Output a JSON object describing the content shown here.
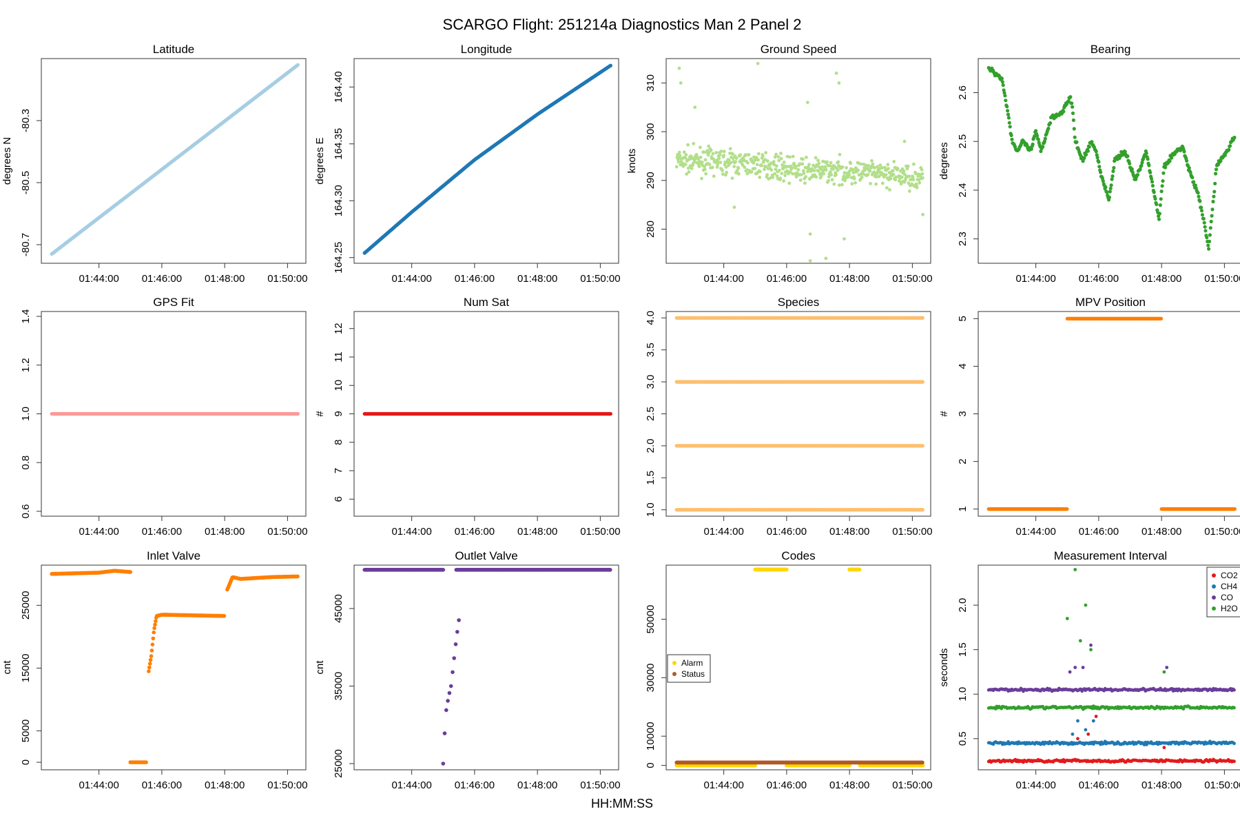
{
  "figure": {
    "title": "SCARGO Flight: 251214a  Diagnostics Man 2 Panel 2",
    "xlabel": "HH:MM:SS",
    "x_tick_labels": [
      "01:44:00",
      "01:46:00",
      "01:48:00",
      "01:50:00"
    ]
  },
  "chart_data": [
    {
      "id": "latitude",
      "type": "scatter",
      "title": "Latitude",
      "ylabel": "degrees N",
      "xlim": [
        "01:42:10",
        "01:50:35"
      ],
      "ylim": [
        -80.76,
        -80.1
      ],
      "yticks": [
        -80.7,
        -80.5,
        -80.3
      ],
      "ytick_labels": [
        "-80.7",
        "-80.5",
        "-80.3"
      ],
      "color": "#a6cee3",
      "series": [
        {
          "x": [
            "01:42:30",
            "01:50:20"
          ],
          "y": [
            -80.73,
            -80.12
          ]
        }
      ]
    },
    {
      "id": "longitude",
      "type": "scatter",
      "title": "Longitude",
      "ylabel": "degrees E",
      "xlim": [
        "01:42:10",
        "01:50:35"
      ],
      "ylim": [
        164.245,
        164.425
      ],
      "yticks": [
        164.25,
        164.3,
        164.35,
        164.4
      ],
      "ytick_labels": [
        "164.25",
        "164.30",
        "164.35",
        "164.40"
      ],
      "color": "#1f78b4",
      "series": [
        {
          "x": [
            "01:42:30",
            "01:44:00",
            "01:46:00",
            "01:48:00",
            "01:50:20"
          ],
          "y": [
            164.254,
            164.29,
            164.336,
            164.376,
            164.419
          ]
        }
      ]
    },
    {
      "id": "ground_speed",
      "type": "scatter",
      "title": "Ground Speed",
      "ylabel": "knots",
      "xlim": [
        "01:42:10",
        "01:50:35"
      ],
      "ylim": [
        273,
        315
      ],
      "yticks": [
        280,
        290,
        300,
        310
      ],
      "ytick_labels": [
        "280",
        "290",
        "300",
        "310"
      ],
      "color": "#b2df8a",
      "series": [
        {
          "x": [
            "01:42:30",
            "01:43:30",
            "01:44:30",
            "01:45:30",
            "01:46:30",
            "01:47:30",
            "01:48:30",
            "01:49:30",
            "01:50:20"
          ],
          "y": [
            294,
            294,
            293.5,
            293,
            292,
            292,
            291.5,
            291,
            290.5
          ]
        }
      ],
      "outliers": [
        {
          "x": "01:42:35",
          "y": 313
        },
        {
          "x": "01:42:38",
          "y": 310
        },
        {
          "x": "01:43:05",
          "y": 305
        },
        {
          "x": "01:45:05",
          "y": 314
        },
        {
          "x": "01:46:40",
          "y": 306
        },
        {
          "x": "01:47:35",
          "y": 312
        },
        {
          "x": "01:47:40",
          "y": 310
        },
        {
          "x": "01:46:45",
          "y": 279
        },
        {
          "x": "01:46:45",
          "y": 273.5
        },
        {
          "x": "01:47:15",
          "y": 274
        },
        {
          "x": "01:47:50",
          "y": 278
        },
        {
          "x": "01:44:20",
          "y": 284.5
        },
        {
          "x": "01:50:20",
          "y": 283
        },
        {
          "x": "01:49:45",
          "y": 298
        }
      ]
    },
    {
      "id": "bearing",
      "type": "scatter",
      "title": "Bearing",
      "ylabel": "degrees",
      "xlim": [
        "01:42:10",
        "01:50:35"
      ],
      "ylim": [
        2.25,
        2.67
      ],
      "yticks": [
        2.3,
        2.4,
        2.5,
        2.6
      ],
      "ytick_labels": [
        "2.3",
        "2.4",
        "2.5",
        "2.6"
      ],
      "color": "#33a02c",
      "series": [
        {
          "x": [
            "01:42:30",
            "01:42:55",
            "01:43:05",
            "01:43:15",
            "01:43:25",
            "01:43:35",
            "01:43:50",
            "01:44:00",
            "01:44:10",
            "01:44:30",
            "01:44:50",
            "01:45:05",
            "01:45:10",
            "01:45:15",
            "01:45:30",
            "01:45:45",
            "01:45:55",
            "01:46:05",
            "01:46:20",
            "01:46:30",
            "01:46:50",
            "01:47:10",
            "01:47:30",
            "01:47:45",
            "01:47:55",
            "01:48:05",
            "01:48:20",
            "01:48:40",
            "01:48:50",
            "01:49:00",
            "01:49:10",
            "01:49:20",
            "01:49:30",
            "01:49:45",
            "01:50:05",
            "01:50:20"
          ],
          "y": [
            2.65,
            2.63,
            2.57,
            2.5,
            2.48,
            2.5,
            2.48,
            2.52,
            2.48,
            2.55,
            2.56,
            2.59,
            2.57,
            2.5,
            2.46,
            2.5,
            2.48,
            2.43,
            2.38,
            2.46,
            2.48,
            2.42,
            2.48,
            2.4,
            2.34,
            2.45,
            2.47,
            2.49,
            2.45,
            2.42,
            2.39,
            2.34,
            2.28,
            2.45,
            2.48,
            2.51
          ]
        }
      ]
    },
    {
      "id": "gps_fit",
      "type": "scatter",
      "title": "GPS Fit",
      "ylabel": "",
      "xlim": [
        "01:42:10",
        "01:50:35"
      ],
      "ylim": [
        0.58,
        1.42
      ],
      "yticks": [
        0.6,
        0.8,
        1.0,
        1.2,
        1.4
      ],
      "ytick_labels": [
        "0.6",
        "0.8",
        "1.0",
        "1.2",
        "1.4"
      ],
      "color": "#fb9a99",
      "series": [
        {
          "x": [
            "01:42:30",
            "01:50:20"
          ],
          "y": [
            1,
            1
          ]
        }
      ]
    },
    {
      "id": "num_sat",
      "type": "scatter",
      "title": "Num Sat",
      "ylabel": "#",
      "xlim": [
        "01:42:10",
        "01:50:35"
      ],
      "ylim": [
        5.4,
        12.6
      ],
      "yticks": [
        6,
        7,
        8,
        9,
        10,
        11,
        12
      ],
      "ytick_labels": [
        "6",
        "7",
        "8",
        "9",
        "10",
        "11",
        "12"
      ],
      "color": "#e31a1c",
      "series": [
        {
          "x": [
            "01:42:30",
            "01:50:20"
          ],
          "y": [
            9,
            9
          ]
        }
      ]
    },
    {
      "id": "species",
      "type": "scatter",
      "title": "Species",
      "ylabel": "",
      "xlim": [
        "01:42:10",
        "01:50:35"
      ],
      "ylim": [
        0.9,
        4.1
      ],
      "yticks": [
        1.0,
        1.5,
        2.0,
        2.5,
        3.0,
        3.5,
        4.0
      ],
      "ytick_labels": [
        "1.0",
        "1.5",
        "2.0",
        "2.5",
        "3.0",
        "3.5",
        "4.0"
      ],
      "color": "#fdbf6f",
      "series": [
        {
          "x": [
            "01:42:30",
            "01:50:20"
          ],
          "y": [
            1,
            1
          ]
        },
        {
          "x": [
            "01:42:30",
            "01:50:20"
          ],
          "y": [
            2,
            2
          ]
        },
        {
          "x": [
            "01:42:30",
            "01:50:20"
          ],
          "y": [
            3,
            3
          ]
        },
        {
          "x": [
            "01:42:30",
            "01:50:20"
          ],
          "y": [
            4,
            4
          ]
        }
      ]
    },
    {
      "id": "mpv_position",
      "type": "scatter",
      "title": "MPV Position",
      "ylabel": "#",
      "xlim": [
        "01:42:10",
        "01:50:35"
      ],
      "ylim": [
        0.85,
        5.15
      ],
      "yticks": [
        1,
        2,
        3,
        4,
        5
      ],
      "ytick_labels": [
        "1",
        "2",
        "3",
        "4",
        "5"
      ],
      "color": "#ff7f00",
      "series": [
        {
          "x": [
            "01:42:30",
            "01:45:00"
          ],
          "y": [
            1,
            1
          ]
        },
        {
          "x": [
            "01:45:00",
            "01:48:00"
          ],
          "y": [
            5,
            5
          ]
        },
        {
          "x": [
            "01:48:00",
            "01:50:20"
          ],
          "y": [
            1,
            1
          ]
        }
      ]
    },
    {
      "id": "inlet_valve",
      "type": "scatter",
      "title": "Inlet Valve",
      "ylabel": "cnt",
      "xlim": [
        "01:42:10",
        "01:50:35"
      ],
      "ylim": [
        -1200,
        31400
      ],
      "yticks": [
        0,
        5000,
        15000,
        25000
      ],
      "ytick_labels": [
        "0",
        "5000",
        "15000",
        "25000"
      ],
      "color": "#ff7f00",
      "series": [
        {
          "x": [
            "01:42:30",
            "01:44:00",
            "01:44:30",
            "01:45:00"
          ],
          "y": [
            30000,
            30200,
            30500,
            30300
          ]
        },
        {
          "x": [
            "01:45:00",
            "01:45:30"
          ],
          "y": [
            0,
            0
          ]
        },
        {
          "x": [
            "01:45:35",
            "01:45:40",
            "01:45:45",
            "01:45:50",
            "01:46:00",
            "01:47:00",
            "01:48:00"
          ],
          "y": [
            14500,
            17000,
            21000,
            23300,
            23500,
            23400,
            23300
          ]
        },
        {
          "x": [
            "01:48:05",
            "01:48:15",
            "01:48:30",
            "01:49:30",
            "01:50:20"
          ],
          "y": [
            27500,
            29500,
            29200,
            29500,
            29600
          ]
        }
      ]
    },
    {
      "id": "outlet_valve",
      "type": "scatter",
      "title": "Outlet Valve",
      "ylabel": "cnt",
      "xlim": [
        "01:42:10",
        "01:50:35"
      ],
      "ylim": [
        24200,
        50600
      ],
      "yticks": [
        25000,
        35000,
        45000
      ],
      "ytick_labels": [
        "25000",
        "35000",
        "45000"
      ],
      "color": "#6a3d9a",
      "series": [
        {
          "x": [
            "01:42:30",
            "01:45:00"
          ],
          "y": [
            50000,
            50000
          ]
        },
        {
          "x": [
            "01:45:00",
            "01:45:05",
            "01:45:10",
            "01:45:15",
            "01:45:20",
            "01:45:25",
            "01:45:30"
          ],
          "y": [
            25000,
            31500,
            33500,
            35000,
            38000,
            41000,
            43500
          ]
        },
        {
          "x": [
            "01:45:25",
            "01:50:20"
          ],
          "y": [
            50000,
            50000
          ]
        }
      ]
    },
    {
      "id": "codes",
      "type": "scatter",
      "title": "Codes",
      "ylabel": "",
      "xlim": [
        "01:42:10",
        "01:50:35"
      ],
      "ylim": [
        -1500,
        68500
      ],
      "yticks": [
        0,
        10000,
        30000,
        50000
      ],
      "ytick_labels": [
        "0",
        "10000",
        "30000",
        "50000"
      ],
      "legend": {
        "position": "left",
        "entries": [
          {
            "name": "Alarm",
            "color": "#ffd700"
          },
          {
            "name": "Status",
            "color": "#b15928"
          }
        ]
      },
      "series": [
        {
          "name": "Alarm",
          "color": "#ffd700",
          "segments": [
            {
              "x": [
                "01:42:30",
                "01:45:00"
              ],
              "y": [
                0,
                0
              ]
            },
            {
              "x": [
                "01:45:00",
                "01:46:00"
              ],
              "y": [
                67000,
                67000
              ]
            },
            {
              "x": [
                "01:46:00",
                "01:48:00"
              ],
              "y": [
                0,
                0
              ]
            },
            {
              "x": [
                "01:48:00",
                "01:48:20"
              ],
              "y": [
                67000,
                67000
              ]
            },
            {
              "x": [
                "01:48:20",
                "01:50:20"
              ],
              "y": [
                0,
                0
              ]
            }
          ]
        },
        {
          "name": "Status",
          "color": "#b15928",
          "segments": [
            {
              "x": [
                "01:42:30",
                "01:50:20"
              ],
              "y": [
                1000,
                1000
              ]
            }
          ]
        }
      ]
    },
    {
      "id": "measurement_interval",
      "type": "scatter",
      "title": "Measurement Interval",
      "ylabel": "seconds",
      "xlim": [
        "01:42:10",
        "01:50:35"
      ],
      "ylim": [
        0.15,
        2.45
      ],
      "yticks": [
        0.5,
        1.0,
        1.5,
        2.0
      ],
      "ytick_labels": [
        "0.5",
        "1.0",
        "1.5",
        "2.0"
      ],
      "legend": {
        "position": "top-right",
        "entries": [
          {
            "name": "CO2",
            "color": "#e31a1c"
          },
          {
            "name": "CH4",
            "color": "#1f78b4"
          },
          {
            "name": "CO",
            "color": "#6a3d9a"
          },
          {
            "name": "H2O",
            "color": "#33a02c"
          }
        ]
      },
      "series": [
        {
          "name": "CO2",
          "color": "#e31a1c",
          "baseline": 0.25,
          "peaks": [
            {
              "x": "01:45:20",
              "y": 0.5
            },
            {
              "x": "01:45:30",
              "y": 0.45
            },
            {
              "x": "01:45:40",
              "y": 0.55
            },
            {
              "x": "01:45:55",
              "y": 0.75
            },
            {
              "x": "01:48:05",
              "y": 0.4
            }
          ]
        },
        {
          "name": "CH4",
          "color": "#1f78b4",
          "baseline": 0.45,
          "peaks": [
            {
              "x": "01:45:10",
              "y": 0.55
            },
            {
              "x": "01:45:20",
              "y": 0.7
            },
            {
              "x": "01:45:35",
              "y": 0.6
            },
            {
              "x": "01:45:50",
              "y": 0.7
            }
          ]
        },
        {
          "name": "CO",
          "color": "#6a3d9a",
          "baseline": 1.05,
          "peaks": [
            {
              "x": "01:45:05",
              "y": 1.25
            },
            {
              "x": "01:45:15",
              "y": 1.3
            },
            {
              "x": "01:45:30",
              "y": 1.3
            },
            {
              "x": "01:45:45",
              "y": 1.55
            },
            {
              "x": "01:48:10",
              "y": 1.3
            }
          ]
        },
        {
          "name": "H2O",
          "color": "#33a02c",
          "baseline": 0.85,
          "peaks": [
            {
              "x": "01:45:00",
              "y": 1.85
            },
            {
              "x": "01:45:15",
              "y": 2.4
            },
            {
              "x": "01:45:25",
              "y": 1.6
            },
            {
              "x": "01:45:35",
              "y": 2.0
            },
            {
              "x": "01:45:45",
              "y": 1.5
            },
            {
              "x": "01:48:05",
              "y": 1.25
            }
          ]
        }
      ]
    }
  ]
}
